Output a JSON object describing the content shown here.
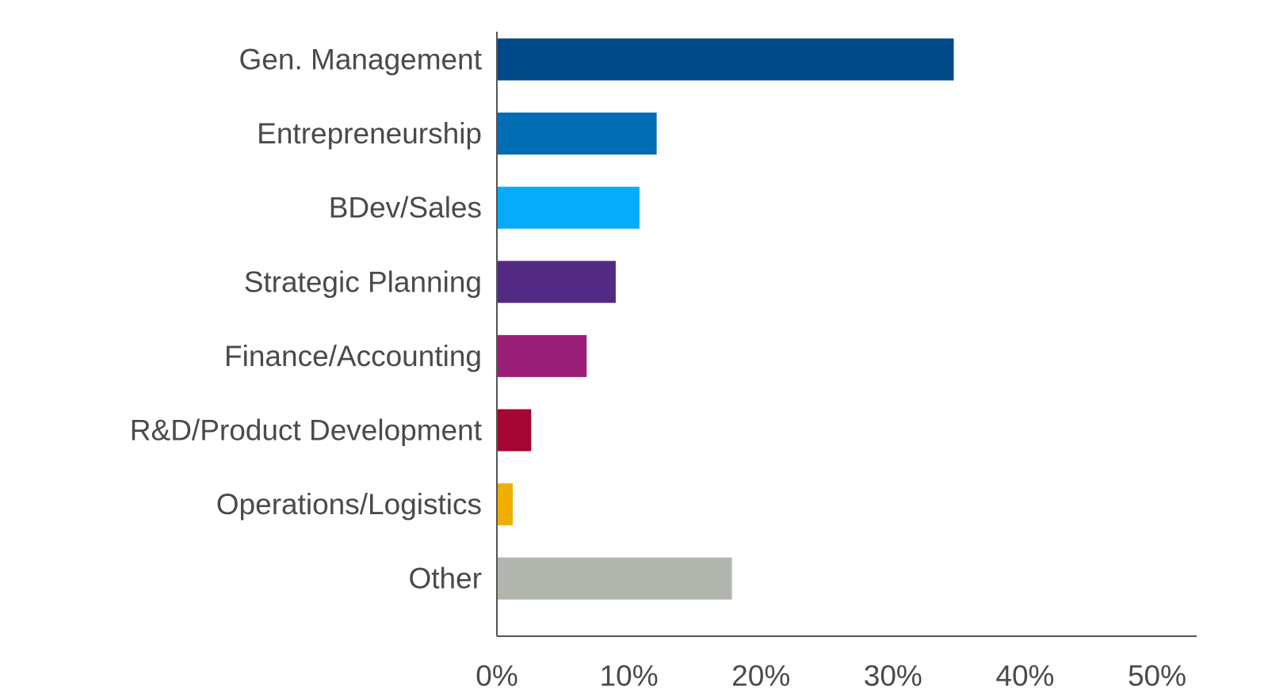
{
  "chart_data": {
    "type": "bar",
    "orientation": "horizontal",
    "title": "",
    "xlabel": "",
    "ylabel": "",
    "categories": [
      "Gen. Management",
      "Entrepreneurship",
      "BDev/Sales",
      "Strategic Planning",
      "Finance/Accounting",
      "R&D/Product Development",
      "Operations/Logistics",
      "Other"
    ],
    "values": [
      34.6,
      12.1,
      10.8,
      9.0,
      6.8,
      2.6,
      1.2,
      17.8
    ],
    "colors": [
      "#004a87",
      "#006db5",
      "#06abf9",
      "#522a84",
      "#9a2077",
      "#a50533",
      "#f0ae00",
      "#b0b5ae"
    ],
    "xlim": [
      0,
      53
    ],
    "xticks": [
      0,
      10,
      20,
      30,
      40,
      50
    ],
    "xtick_labels": [
      "0%",
      "10%",
      "20%",
      "30%",
      "40%",
      "50%"
    ],
    "grid": false,
    "legend": "none"
  }
}
